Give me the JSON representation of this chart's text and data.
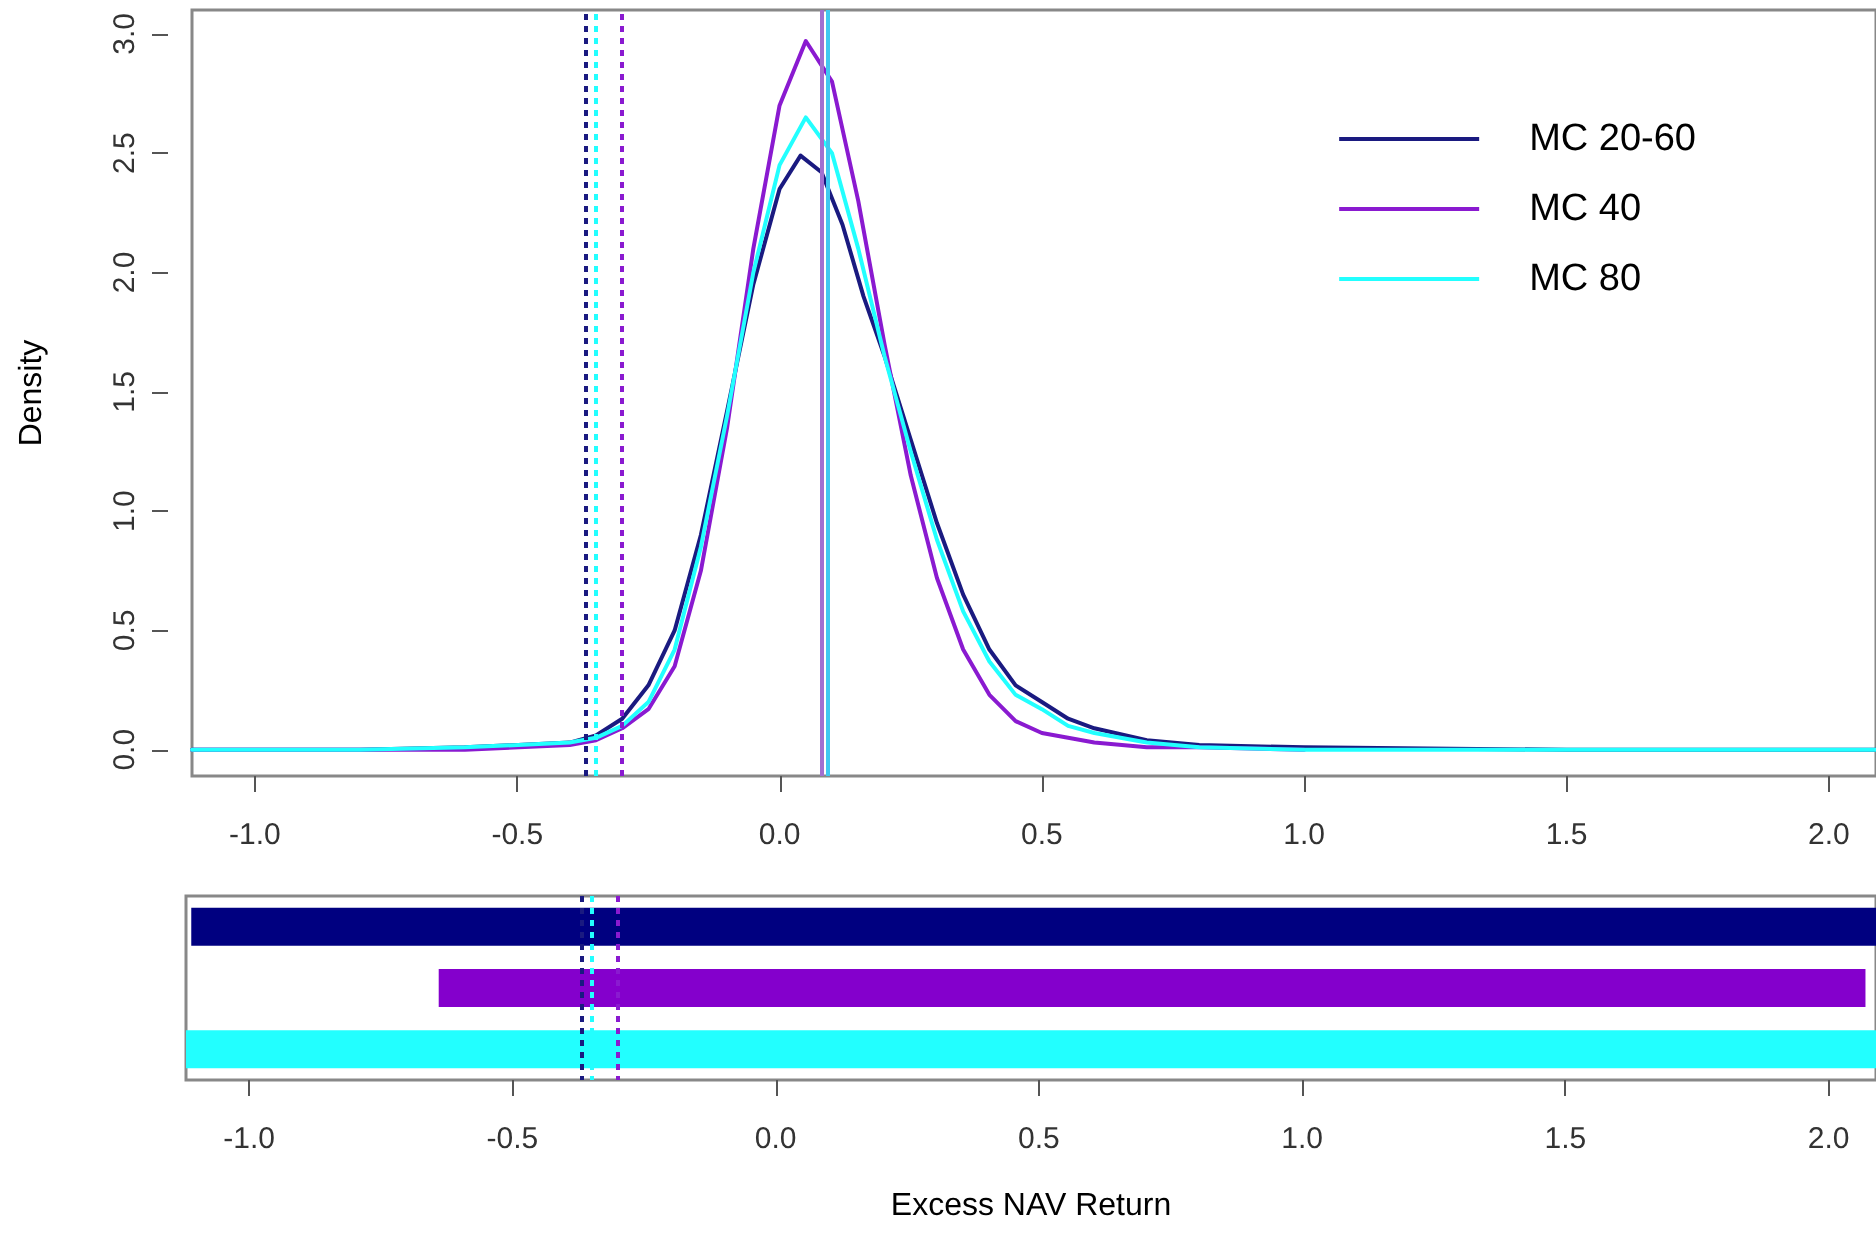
{
  "chart_data": [
    {
      "type": "line",
      "ylabel": "Density",
      "xlim": [
        -1.12,
        2.09
      ],
      "ylim": [
        -0.11,
        3.1
      ],
      "xticks": [
        {
          "value": -1,
          "label": "-1.0"
        },
        {
          "value": -0.5,
          "label": "-0.5"
        },
        {
          "value": 0,
          "label": "0.0"
        },
        {
          "value": 0.5,
          "label": "0.5"
        },
        {
          "value": 1,
          "label": "1.0"
        },
        {
          "value": 1.5,
          "label": "1.5"
        },
        {
          "value": 2,
          "label": "2.0"
        }
      ],
      "yticks": [
        {
          "value": 0,
          "label": "0.0"
        },
        {
          "value": 0.5,
          "label": "0.5"
        },
        {
          "value": 1,
          "label": "1.0"
        },
        {
          "value": 1.5,
          "label": "1.5"
        },
        {
          "value": 2,
          "label": "2.0"
        },
        {
          "value": 2.5,
          "label": "2.5"
        },
        {
          "value": 3,
          "label": "3.0"
        }
      ],
      "legend": "top right",
      "marker": "none",
      "line_style": "solid",
      "grid": false,
      "series": [
        {
          "name": "MC 20-60",
          "color": "#1a1a80",
          "x": [
            -1.12,
            -0.8,
            -0.6,
            -0.4,
            -0.35,
            -0.3,
            -0.25,
            -0.2,
            -0.15,
            -0.1,
            -0.05,
            0,
            0.04,
            0.08,
            0.12,
            0.16,
            0.2,
            0.25,
            0.3,
            0.35,
            0.4,
            0.45,
            0.5,
            0.55,
            0.6,
            0.7,
            0.8,
            1,
            1.5,
            2.09
          ],
          "values": [
            0,
            0,
            0.01,
            0.03,
            0.06,
            0.13,
            0.27,
            0.5,
            0.9,
            1.42,
            1.95,
            2.35,
            2.49,
            2.42,
            2.2,
            1.9,
            1.65,
            1.3,
            0.95,
            0.65,
            0.42,
            0.27,
            0.2,
            0.13,
            0.09,
            0.04,
            0.02,
            0.01,
            0,
            0
          ]
        },
        {
          "name": "MC 40",
          "color": "#8a1ad0",
          "x": [
            -1.12,
            -0.8,
            -0.6,
            -0.4,
            -0.35,
            -0.3,
            -0.25,
            -0.2,
            -0.15,
            -0.1,
            -0.05,
            0,
            0.05,
            0.1,
            0.15,
            0.2,
            0.25,
            0.3,
            0.35,
            0.4,
            0.45,
            0.5,
            0.55,
            0.6,
            0.7,
            0.8,
            1
          ],
          "values": [
            0,
            0,
            0,
            0.02,
            0.04,
            0.09,
            0.17,
            0.35,
            0.75,
            1.35,
            2.1,
            2.7,
            2.97,
            2.8,
            2.3,
            1.7,
            1.15,
            0.72,
            0.42,
            0.23,
            0.12,
            0.07,
            0.05,
            0.03,
            0.01,
            0.01,
            0
          ]
        },
        {
          "name": "MC 80",
          "color": "#22ffff",
          "x": [
            -1.12,
            -0.8,
            -0.6,
            -0.4,
            -0.35,
            -0.3,
            -0.25,
            -0.2,
            -0.15,
            -0.1,
            -0.05,
            0,
            0.05,
            0.1,
            0.15,
            0.2,
            0.25,
            0.3,
            0.35,
            0.4,
            0.45,
            0.5,
            0.55,
            0.6,
            0.7,
            0.8,
            1,
            1.5,
            2.09
          ],
          "values": [
            0,
            0,
            0.01,
            0.03,
            0.05,
            0.1,
            0.2,
            0.42,
            0.85,
            1.4,
            2.0,
            2.45,
            2.65,
            2.5,
            2.1,
            1.65,
            1.25,
            0.88,
            0.58,
            0.37,
            0.23,
            0.17,
            0.1,
            0.07,
            0.03,
            0.01,
            0,
            0,
            0
          ]
        }
      ],
      "ref_lines": [
        {
          "axis": "x",
          "value": -0.368,
          "color": "#1a1a80",
          "line_style": "dotted"
        },
        {
          "axis": "x",
          "value": -0.35,
          "color": "#22ffff",
          "line_style": "dotted"
        },
        {
          "axis": "x",
          "value": -0.3,
          "color": "#8a1ad0",
          "line_style": "dotted"
        },
        {
          "axis": "x",
          "value": 0.08,
          "color": "#a070d0",
          "line_style": "solid"
        },
        {
          "axis": "x",
          "value": 0.087,
          "color": "#40c8f0",
          "line_style": "solid"
        }
      ]
    },
    {
      "type": "bar",
      "orientation": "horizontal",
      "xlabel": "Excess NAV Return",
      "xlim": [
        -1.12,
        2.09
      ],
      "xticks": [
        {
          "value": -1,
          "label": "-1.0"
        },
        {
          "value": -0.5,
          "label": "-0.5"
        },
        {
          "value": 0,
          "label": "0.0"
        },
        {
          "value": 0.5,
          "label": "0.5"
        },
        {
          "value": 1,
          "label": "1.0"
        },
        {
          "value": 1.5,
          "label": "1.5"
        },
        {
          "value": 2,
          "label": "2.0"
        }
      ],
      "tick_labels": "x",
      "categories": [
        null,
        null,
        null
      ],
      "base": [
        -1.11,
        -0.64,
        -1.12
      ],
      "values": [
        3.2,
        2.71,
        3.21
      ],
      "colors": [
        "#000080",
        "#8400cc",
        "#22ffff"
      ],
      "ref_lines": [
        {
          "axis": "x",
          "value": -0.368,
          "color": "#1a1a80",
          "line_style": "dotted"
        },
        {
          "axis": "x",
          "value": -0.35,
          "color": "#22ffff",
          "line_style": "dotted"
        },
        {
          "axis": "x",
          "value": -0.3,
          "color": "#8a1ad0",
          "line_style": "dotted"
        }
      ]
    }
  ]
}
